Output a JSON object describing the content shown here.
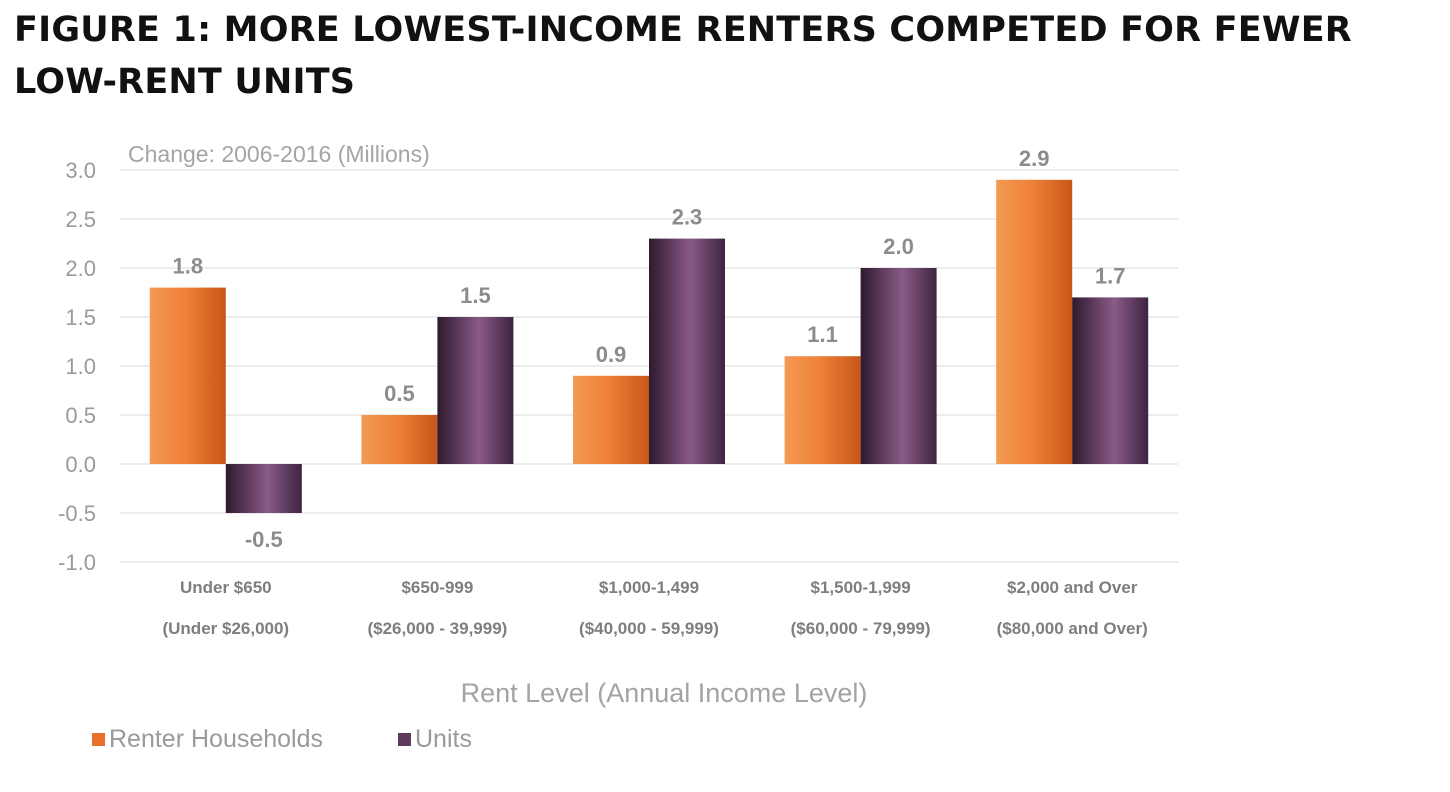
{
  "figure_title": "FIGURE 1: MORE LOWEST-INCOME RENTERS COMPETED FOR FEWER LOW-RENT UNITS",
  "colors": {
    "renter_households": "#e8702a",
    "units": "#5e3a5c",
    "gridline": "#e6e6e6"
  },
  "chart_data": {
    "type": "bar",
    "title": "FIGURE 1: MORE LOWEST-INCOME RENTERS COMPETED FOR FEWER LOW-RENT UNITS",
    "subtitle": "Change: 2006-2016 (Millions)",
    "xlabel": "Rent Level (Annual Income Level)",
    "ylabel": "",
    "ylim": [
      -1.0,
      3.0
    ],
    "yticks": [
      "3.0",
      "2.5",
      "2.0",
      "1.5",
      "1.0",
      "0.5",
      "0.0",
      "-0.5",
      "-1.0"
    ],
    "grid": true,
    "legend_position": "bottom-left",
    "categories": [
      [
        "Under $650",
        "(Under $26,000)"
      ],
      [
        "$650-999",
        "($26,000 - 39,999)"
      ],
      [
        "$1,000-1,499",
        "($40,000 - 59,999)"
      ],
      [
        "$1,500-1,999",
        "($60,000 - 79,999)"
      ],
      [
        "$2,000 and Over",
        "($80,000 and Over)"
      ]
    ],
    "series": [
      {
        "name": "Renter Households",
        "values": [
          1.8,
          0.5,
          0.9,
          1.1,
          2.9
        ],
        "labels": [
          "1.8",
          "0.5",
          "0.9",
          "1.1",
          "2.9"
        ]
      },
      {
        "name": "Units",
        "values": [
          -0.5,
          1.5,
          2.3,
          2.0,
          1.7
        ],
        "labels": [
          "-0.5",
          "1.5",
          "2.3",
          "2.0",
          "1.7"
        ]
      }
    ]
  }
}
